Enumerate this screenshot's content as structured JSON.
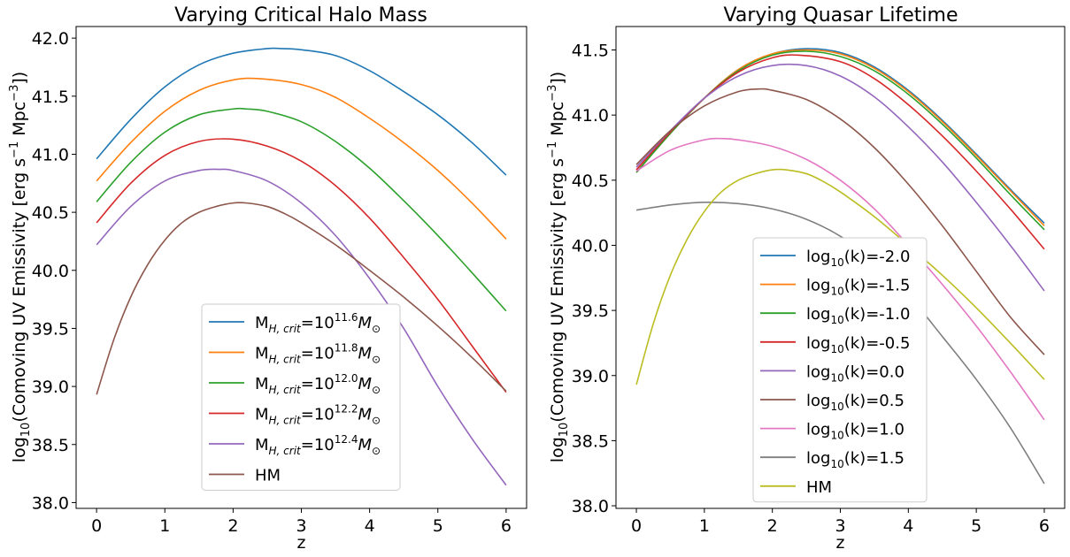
{
  "chart_data": [
    {
      "type": "line",
      "title": "Varying Critical Halo Mass",
      "xlabel": "z",
      "ylabel_main": "log",
      "ylabel_sub": "10",
      "ylabel_rest": "(Comoving UV Emissivity [erg s",
      "ylabel_sup1": "−1",
      "ylabel_rest2": " Mpc",
      "ylabel_sup2": "−3",
      "ylabel_end": "])",
      "xlim": [
        -0.3,
        6.3
      ],
      "ylim": [
        37.95,
        42.1
      ],
      "xticks": [
        0,
        1,
        2,
        3,
        4,
        5,
        6
      ],
      "yticks": [
        38.0,
        38.5,
        39.0,
        39.5,
        40.0,
        40.5,
        41.0,
        41.5,
        42.0
      ],
      "ytick_labels": [
        "38.0",
        "38.5",
        "39.0",
        "39.5",
        "40.0",
        "40.5",
        "41.0",
        "41.5",
        "42.0"
      ],
      "legend_placement": "lower-center",
      "series": [
        {
          "label_base": "M",
          "label_sub": "H, crit",
          "label_mid": "=10",
          "label_sup": "11.6",
          "label_end": "M",
          "label_end_sub": "⊙",
          "color": "#1f77b4",
          "x": [
            0,
            0.5,
            1,
            1.5,
            2,
            2.5,
            2.7,
            3,
            3.5,
            4,
            4.5,
            5,
            5.5,
            6
          ],
          "y": [
            40.96,
            41.3,
            41.58,
            41.77,
            41.87,
            41.91,
            41.91,
            41.9,
            41.85,
            41.72,
            41.54,
            41.34,
            41.1,
            40.82
          ]
        },
        {
          "label_base": "M",
          "label_sub": "H, crit",
          "label_mid": "=10",
          "label_sup": "11.8",
          "label_end": "M",
          "label_end_sub": "⊙",
          "color": "#ff7f0e",
          "x": [
            0,
            0.5,
            1,
            1.5,
            2,
            2.4,
            3,
            3.5,
            4,
            4.5,
            5,
            5.5,
            6
          ],
          "y": [
            40.77,
            41.1,
            41.37,
            41.55,
            41.64,
            41.65,
            41.6,
            41.49,
            41.31,
            41.1,
            40.86,
            40.58,
            40.27
          ]
        },
        {
          "label_base": "M",
          "label_sub": "H, crit",
          "label_mid": "=10",
          "label_sup": "12.0",
          "label_end": "M",
          "label_end_sub": "⊙",
          "color": "#2ca02c",
          "x": [
            0,
            0.5,
            1,
            1.5,
            2,
            2.2,
            2.5,
            3,
            3.5,
            4,
            4.5,
            5,
            5.5,
            6
          ],
          "y": [
            40.59,
            40.93,
            41.19,
            41.34,
            41.39,
            41.39,
            41.37,
            41.28,
            41.11,
            40.88,
            40.6,
            40.3,
            39.98,
            39.65
          ]
        },
        {
          "label_base": "M",
          "label_sub": "H, crit",
          "label_mid": "=10",
          "label_sup": "12.2",
          "label_end": "M",
          "label_end_sub": "⊙",
          "color": "#d62728",
          "x": [
            0,
            0.5,
            1,
            1.5,
            2,
            2.5,
            3,
            3.5,
            4,
            4.5,
            5,
            5.5,
            6
          ],
          "y": [
            40.41,
            40.75,
            40.99,
            41.11,
            41.13,
            41.07,
            40.94,
            40.73,
            40.45,
            40.11,
            39.75,
            39.35,
            38.95
          ]
        },
        {
          "label_base": "M",
          "label_sub": "H, crit",
          "label_mid": "=10",
          "label_sup": "12.4",
          "label_end": "M",
          "label_end_sub": "⊙",
          "color": "#9467bd",
          "x": [
            0,
            0.5,
            1,
            1.5,
            1.8,
            2,
            2.5,
            3,
            3.5,
            4,
            4.5,
            5,
            5.5,
            6
          ],
          "y": [
            40.22,
            40.55,
            40.77,
            40.86,
            40.87,
            40.86,
            40.77,
            40.58,
            40.3,
            39.93,
            39.5,
            39.0,
            38.55,
            38.15
          ]
        },
        {
          "label_base": "HM",
          "label_sub": "",
          "label_mid": "",
          "label_sup": "",
          "label_end": "",
          "label_end_sub": "",
          "color": "#8c564b",
          "x": [
            0,
            0.25,
            0.5,
            0.75,
            1,
            1.25,
            1.5,
            1.75,
            2,
            2.2,
            2.5,
            2.75,
            3,
            3.5,
            4,
            4.5,
            5,
            5.5,
            6
          ],
          "y": [
            38.93,
            39.4,
            39.77,
            40.05,
            40.26,
            40.41,
            40.5,
            40.55,
            40.58,
            40.58,
            40.55,
            40.49,
            40.41,
            40.22,
            40.0,
            39.77,
            39.52,
            39.25,
            38.96
          ]
        }
      ]
    },
    {
      "type": "line",
      "title": "Varying Quasar Lifetime",
      "xlabel": "z",
      "ylabel_main": "log",
      "ylabel_sub": "10",
      "ylabel_rest": "(Comoving UV Emissivity [erg s",
      "ylabel_sup1": "−1",
      "ylabel_rest2": " Mpc",
      "ylabel_sup2": "−3",
      "ylabel_end": "])",
      "xlim": [
        -0.3,
        6.3
      ],
      "ylim": [
        37.98,
        41.68
      ],
      "xticks": [
        0,
        1,
        2,
        3,
        4,
        5,
        6
      ],
      "yticks": [
        38.0,
        38.5,
        39.0,
        39.5,
        40.0,
        40.5,
        41.0,
        41.5
      ],
      "ytick_labels": [
        "38.0",
        "38.5",
        "39.0",
        "39.5",
        "40.0",
        "40.5",
        "41.0",
        "41.5"
      ],
      "legend_placement": "lower-center",
      "series": [
        {
          "label_base": "log",
          "label_sub": "10",
          "label_mid": "(k)=-2.0",
          "label_sup": "",
          "label_end": "",
          "label_end_sub": "",
          "color": "#1f77b4",
          "x": [
            0,
            0.5,
            1,
            1.5,
            2,
            2.5,
            3,
            3.5,
            4,
            4.5,
            5,
            5.5,
            6
          ],
          "y": [
            40.56,
            40.86,
            41.13,
            41.35,
            41.47,
            41.51,
            41.48,
            41.37,
            41.19,
            40.96,
            40.7,
            40.43,
            40.17
          ]
        },
        {
          "label_base": "log",
          "label_sub": "10",
          "label_mid": "(k)=-1.5",
          "label_sup": "",
          "label_end": "",
          "label_end_sub": "",
          "color": "#ff7f0e",
          "x": [
            0,
            0.5,
            1,
            1.5,
            2,
            2.5,
            3,
            3.5,
            4,
            4.5,
            5,
            5.5,
            6
          ],
          "y": [
            40.56,
            40.86,
            41.13,
            41.35,
            41.47,
            41.5,
            41.47,
            41.36,
            41.18,
            40.95,
            40.69,
            40.42,
            40.15
          ]
        },
        {
          "label_base": "log",
          "label_sub": "10",
          "label_mid": "(k)=-1.0",
          "label_sup": "",
          "label_end": "",
          "label_end_sub": "",
          "color": "#2ca02c",
          "x": [
            0,
            0.5,
            1,
            1.5,
            2,
            2.5,
            3,
            3.5,
            4,
            4.5,
            5,
            5.5,
            6
          ],
          "y": [
            40.56,
            40.86,
            41.13,
            41.34,
            41.46,
            41.49,
            41.45,
            41.34,
            41.16,
            40.93,
            40.67,
            40.39,
            40.12
          ]
        },
        {
          "label_base": "log",
          "label_sub": "10",
          "label_mid": "(k)=-0.5",
          "label_sup": "",
          "label_end": "",
          "label_end_sub": "",
          "color": "#d62728",
          "x": [
            0,
            0.5,
            1,
            1.5,
            2,
            2.4,
            3,
            3.5,
            4,
            4.5,
            5,
            5.5,
            6
          ],
          "y": [
            40.58,
            40.87,
            41.13,
            41.33,
            41.44,
            41.46,
            41.41,
            41.28,
            41.08,
            40.84,
            40.57,
            40.28,
            39.97
          ]
        },
        {
          "label_base": "log",
          "label_sub": "10",
          "label_mid": "(k)=0.0",
          "label_sup": "",
          "label_end": "",
          "label_end_sub": "",
          "color": "#9467bd",
          "x": [
            0,
            0.5,
            1,
            1.5,
            2,
            2.5,
            3,
            3.5,
            4,
            4.5,
            5,
            5.5,
            6
          ],
          "y": [
            40.6,
            40.88,
            41.13,
            41.3,
            41.38,
            41.38,
            41.3,
            41.14,
            40.91,
            40.64,
            40.33,
            40.0,
            39.65
          ]
        },
        {
          "label_base": "log",
          "label_sub": "10",
          "label_mid": "(k)=0.5",
          "label_sup": "",
          "label_end": "",
          "label_end_sub": "",
          "color": "#8c564b",
          "x": [
            0,
            0.5,
            1,
            1.5,
            1.8,
            2,
            2.5,
            3,
            3.5,
            4,
            4.5,
            5,
            5.5,
            6
          ],
          "y": [
            40.62,
            40.88,
            41.07,
            41.18,
            41.2,
            41.19,
            41.12,
            40.97,
            40.75,
            40.47,
            40.15,
            39.8,
            39.45,
            39.16
          ]
        },
        {
          "label_base": "log",
          "label_sub": "10",
          "label_mid": "(k)=1.0",
          "label_sup": "",
          "label_end": "",
          "label_end_sub": "",
          "color": "#e377c2",
          "x": [
            0,
            0.5,
            1,
            1.25,
            1.5,
            2,
            2.5,
            3,
            3.5,
            4,
            4.5,
            5,
            5.5,
            6
          ],
          "y": [
            40.57,
            40.73,
            40.81,
            40.82,
            40.81,
            40.76,
            40.66,
            40.5,
            40.28,
            40.0,
            39.7,
            39.38,
            39.03,
            38.66
          ]
        },
        {
          "label_base": "log",
          "label_sub": "10",
          "label_mid": "(k)=1.5",
          "label_sup": "",
          "label_end": "",
          "label_end_sub": "",
          "color": "#7f7f7f",
          "x": [
            0,
            0.5,
            1,
            1.5,
            2,
            2.5,
            3,
            3.5,
            4,
            4.5,
            5,
            5.5,
            6
          ],
          "y": [
            40.27,
            40.31,
            40.33,
            40.32,
            40.28,
            40.2,
            40.07,
            39.88,
            39.62,
            39.3,
            38.97,
            38.6,
            38.17
          ]
        },
        {
          "label_base": "HM",
          "label_sub": "",
          "label_mid": "",
          "label_sup": "",
          "label_end": "",
          "label_end_sub": "",
          "color": "#bcbd22",
          "x": [
            0,
            0.25,
            0.5,
            0.75,
            1,
            1.25,
            1.5,
            1.75,
            2,
            2.2,
            2.5,
            2.75,
            3,
            3.5,
            4,
            4.5,
            5,
            5.5,
            6
          ],
          "y": [
            38.93,
            39.4,
            39.77,
            40.05,
            40.26,
            40.41,
            40.5,
            40.55,
            40.58,
            40.58,
            40.55,
            40.49,
            40.41,
            40.22,
            40.0,
            39.77,
            39.52,
            39.25,
            38.97
          ]
        }
      ]
    }
  ]
}
